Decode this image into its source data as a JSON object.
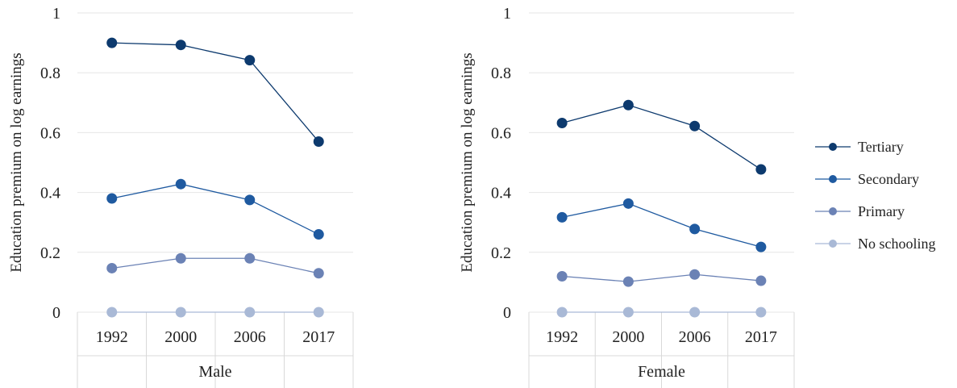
{
  "chart_data": [
    {
      "type": "line",
      "title": "Male",
      "ylabel": "Education premium on log earnings",
      "categories": [
        "1992",
        "2000",
        "2006",
        "2017"
      ],
      "ylim": [
        0,
        1
      ],
      "yticks": [
        "0",
        "0.2",
        "0.4",
        "0.6",
        "0.8",
        "1"
      ],
      "grid": true,
      "series": [
        {
          "name": "Tertiary",
          "color": "#0d3a6e",
          "values": [
            0.9,
            0.893,
            0.842,
            0.57
          ]
        },
        {
          "name": "Secondary",
          "color": "#1f5aa0",
          "values": [
            0.38,
            0.428,
            0.375,
            0.26
          ]
        },
        {
          "name": "Primary",
          "color": "#6b82b5",
          "values": [
            0.147,
            0.18,
            0.18,
            0.13
          ]
        },
        {
          "name": "No schooling",
          "color": "#a9b9d6",
          "values": [
            0,
            0,
            0,
            0
          ]
        }
      ]
    },
    {
      "type": "line",
      "title": "Female",
      "ylabel": "Education premium on log earnings",
      "categories": [
        "1992",
        "2000",
        "2006",
        "2017"
      ],
      "ylim": [
        0,
        1
      ],
      "yticks": [
        "0",
        "0.2",
        "0.4",
        "0.6",
        "0.8",
        "1"
      ],
      "grid": true,
      "series": [
        {
          "name": "Tertiary",
          "color": "#0d3a6e",
          "values": [
            0.632,
            0.692,
            0.622,
            0.477
          ]
        },
        {
          "name": "Secondary",
          "color": "#1f5aa0",
          "values": [
            0.317,
            0.363,
            0.278,
            0.218
          ]
        },
        {
          "name": "Primary",
          "color": "#6b82b5",
          "values": [
            0.12,
            0.102,
            0.126,
            0.105
          ]
        },
        {
          "name": "No schooling",
          "color": "#a9b9d6",
          "values": [
            0,
            0,
            0,
            0
          ]
        }
      ]
    }
  ],
  "legend": {
    "placement": "right",
    "items": [
      {
        "name": "Tertiary",
        "color": "#0d3a6e"
      },
      {
        "name": "Secondary",
        "color": "#1f5aa0"
      },
      {
        "name": "Primary",
        "color": "#6b82b5"
      },
      {
        "name": "No schooling",
        "color": "#a9b9d6"
      }
    ]
  }
}
